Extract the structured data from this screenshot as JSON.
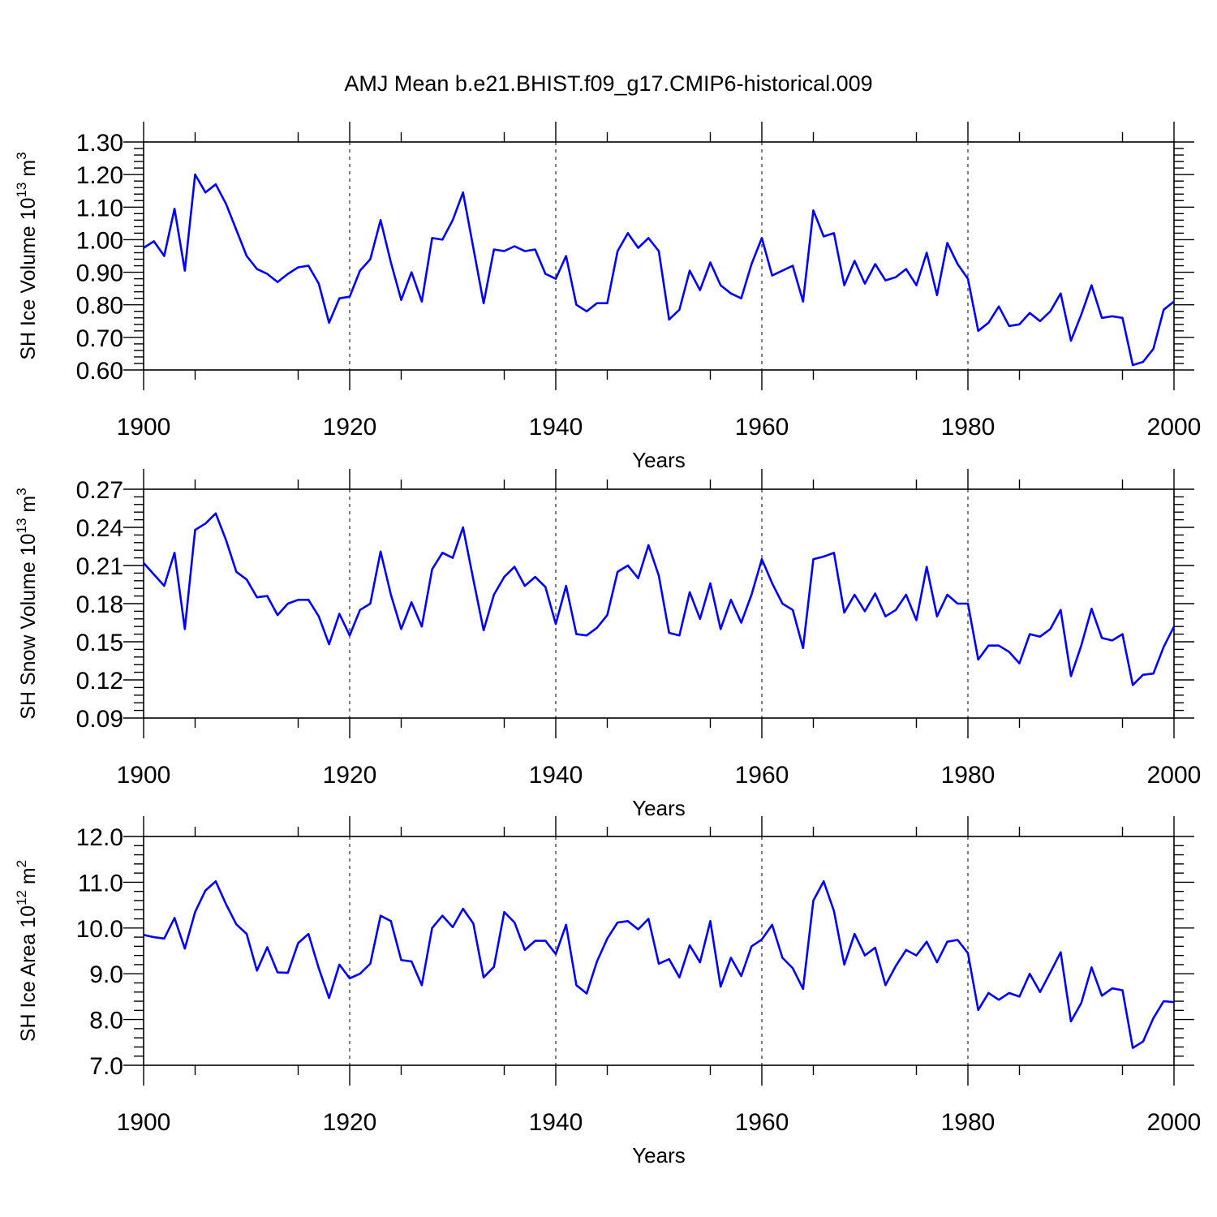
{
  "title": "AMJ Mean b.e21.BHIST.f09_g17.CMIP6-historical.009",
  "colors": {
    "line": "#0000ff",
    "axes": "#000000"
  },
  "chart_data": [
    {
      "type": "line",
      "ylabel": {
        "main": "SH Ice Volume 10",
        "exp": "13",
        "unit": " m",
        "unit_exp": "3"
      },
      "xlabel": "Years",
      "xlim": [
        1900,
        2000
      ],
      "ylim": [
        0.6,
        1.3
      ],
      "grid": "dashed vertical at major x ticks",
      "x_ticks": [
        "1900",
        "1920",
        "1940",
        "1960",
        "1980",
        "2000"
      ],
      "y_ticks": [
        "0.60",
        "0.70",
        "0.80",
        "0.90",
        "1.00",
        "1.10",
        "1.20",
        "1.30"
      ],
      "x_start": 1900,
      "values": [
        0.975,
        0.995,
        0.95,
        1.095,
        0.905,
        1.2,
        1.145,
        1.17,
        1.11,
        1.03,
        0.95,
        0.91,
        0.895,
        0.87,
        0.895,
        0.915,
        0.92,
        0.865,
        0.745,
        0.82,
        0.825,
        0.905,
        0.94,
        1.06,
        0.93,
        0.815,
        0.9,
        0.81,
        1.005,
        1.0,
        1.06,
        1.145,
        0.975,
        0.805,
        0.97,
        0.965,
        0.98,
        0.965,
        0.97,
        0.895,
        0.88,
        0.95,
        0.8,
        0.78,
        0.805,
        0.805,
        0.965,
        1.02,
        0.975,
        1.005,
        0.965,
        0.755,
        0.785,
        0.905,
        0.845,
        0.93,
        0.86,
        0.835,
        0.82,
        0.925,
        1.005,
        0.89,
        0.905,
        0.92,
        0.81,
        1.09,
        1.01,
        1.02,
        0.86,
        0.935,
        0.865,
        0.925,
        0.875,
        0.885,
        0.91,
        0.86,
        0.96,
        0.83,
        0.99,
        0.925,
        0.88,
        0.72,
        0.745,
        0.795,
        0.735,
        0.74,
        0.775,
        0.75,
        0.78,
        0.835,
        0.69,
        0.77,
        0.86,
        0.76,
        0.765,
        0.76,
        0.615,
        0.625,
        0.665,
        0.785,
        0.81
      ]
    },
    {
      "type": "line",
      "ylabel": {
        "main": "SH Snow Volume 10",
        "exp": "13",
        "unit": " m",
        "unit_exp": "3"
      },
      "xlabel": "Years",
      "xlim": [
        1900,
        2000
      ],
      "ylim": [
        0.09,
        0.27
      ],
      "grid": "dashed vertical at major x ticks",
      "x_ticks": [
        "1900",
        "1920",
        "1940",
        "1960",
        "1980",
        "2000"
      ],
      "y_ticks": [
        "0.09",
        "0.12",
        "0.15",
        "0.18",
        "0.21",
        "0.24",
        "0.27"
      ],
      "x_start": 1900,
      "values": [
        0.212,
        0.203,
        0.194,
        0.22,
        0.16,
        0.238,
        0.243,
        0.251,
        0.23,
        0.205,
        0.199,
        0.185,
        0.186,
        0.171,
        0.18,
        0.183,
        0.183,
        0.17,
        0.148,
        0.172,
        0.155,
        0.175,
        0.18,
        0.221,
        0.187,
        0.16,
        0.181,
        0.162,
        0.207,
        0.22,
        0.216,
        0.24,
        0.199,
        0.159,
        0.187,
        0.201,
        0.209,
        0.194,
        0.201,
        0.193,
        0.164,
        0.194,
        0.156,
        0.155,
        0.161,
        0.171,
        0.205,
        0.21,
        0.2,
        0.226,
        0.202,
        0.157,
        0.155,
        0.189,
        0.168,
        0.196,
        0.16,
        0.183,
        0.165,
        0.187,
        0.215,
        0.196,
        0.18,
        0.175,
        0.145,
        0.215,
        0.217,
        0.22,
        0.173,
        0.187,
        0.174,
        0.188,
        0.17,
        0.175,
        0.187,
        0.167,
        0.209,
        0.17,
        0.187,
        0.18,
        0.18,
        0.136,
        0.147,
        0.147,
        0.142,
        0.133,
        0.156,
        0.154,
        0.16,
        0.175,
        0.123,
        0.147,
        0.176,
        0.153,
        0.151,
        0.156,
        0.116,
        0.124,
        0.125,
        0.146,
        0.162
      ]
    },
    {
      "type": "line",
      "ylabel": {
        "main": "SH Ice Area 10",
        "exp": "12",
        "unit": " m",
        "unit_exp": "2"
      },
      "xlabel": "Years",
      "xlim": [
        1900,
        2000
      ],
      "ylim": [
        7.0,
        12.0
      ],
      "grid": "dashed vertical at major x ticks",
      "x_ticks": [
        "1900",
        "1920",
        "1940",
        "1960",
        "1980",
        "2000"
      ],
      "y_ticks": [
        "7.0",
        "8.0",
        "9.0",
        "10.0",
        "11.0",
        "12.0"
      ],
      "x_start": 1900,
      "values": [
        9.85,
        9.8,
        9.77,
        10.22,
        9.55,
        10.35,
        10.82,
        11.02,
        10.52,
        10.08,
        9.87,
        9.07,
        9.58,
        9.03,
        9.02,
        9.67,
        9.87,
        9.12,
        8.47,
        9.2,
        8.9,
        9.0,
        9.22,
        10.27,
        10.15,
        9.3,
        9.27,
        8.75,
        10.0,
        10.27,
        10.02,
        10.42,
        10.1,
        8.92,
        9.15,
        10.35,
        10.12,
        9.52,
        9.72,
        9.72,
        9.43,
        10.07,
        8.75,
        8.57,
        9.27,
        9.77,
        10.12,
        10.15,
        9.97,
        10.2,
        9.22,
        9.32,
        8.92,
        9.62,
        9.25,
        10.15,
        8.72,
        9.35,
        8.95,
        9.6,
        9.75,
        10.07,
        9.35,
        9.12,
        8.67,
        10.6,
        11.02,
        10.37,
        9.2,
        9.87,
        9.4,
        9.57,
        8.75,
        9.17,
        9.52,
        9.4,
        9.7,
        9.25,
        9.7,
        9.74,
        9.45,
        8.21,
        8.58,
        8.43,
        8.58,
        8.5,
        9.0,
        8.6,
        9.03,
        9.47,
        7.96,
        8.36,
        9.14,
        8.52,
        8.68,
        8.64,
        7.38,
        7.52,
        8.03,
        8.4,
        8.38
      ]
    }
  ]
}
